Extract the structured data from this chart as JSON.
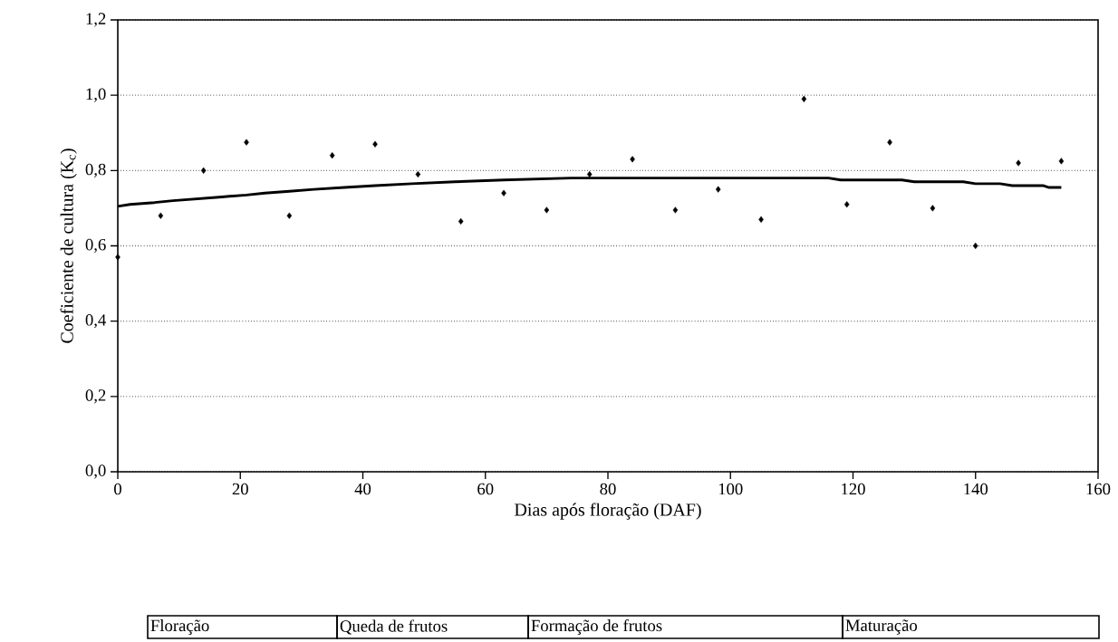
{
  "chart_data": {
    "type": "scatter",
    "xlabel": "Dias após floração (DAF)",
    "ylabel": "Coeficiente de cultura (K$_{c}$)",
    "xlim": [
      0,
      160
    ],
    "ylim": [
      0,
      1.2
    ],
    "xticks": [
      0,
      20,
      40,
      60,
      80,
      100,
      120,
      140,
      160
    ],
    "yticks": [
      {
        "value": 0,
        "label": "0,0"
      },
      {
        "value": 0.2,
        "label": "0,2"
      },
      {
        "value": 0.4,
        "label": "0,4"
      },
      {
        "value": 0.6,
        "label": "0,6"
      },
      {
        "value": 0.8,
        "label": "0,8"
      },
      {
        "value": 1.0,
        "label": "1,0"
      },
      {
        "value": 1.2,
        "label": "1,2"
      }
    ],
    "grid": "y",
    "marker": "diamond",
    "series": [
      {
        "color": "#000000",
        "x": [
          0,
          7,
          14,
          21,
          28,
          35,
          42,
          49,
          56,
          63,
          70,
          77,
          84,
          91,
          98,
          105,
          112,
          119,
          126,
          133,
          140,
          147,
          154
        ],
        "values": [
          0.57,
          0.68,
          0.8,
          0.875,
          0.68,
          0.84,
          0.87,
          0.79,
          0.665,
          0.74,
          0.695,
          0.79,
          0.83,
          0.695,
          0.75,
          0.67,
          0.99,
          0.71,
          0.875,
          0.7,
          0.6,
          0.82,
          0.825
        ]
      },
      {
        "type": "line",
        "color": "#000000",
        "marker": "none",
        "x": [
          0,
          2,
          6,
          9,
          13,
          17,
          21,
          24,
          28,
          32,
          37,
          42,
          48,
          55,
          63,
          74,
          116,
          118,
          128,
          130,
          138,
          140,
          144,
          146,
          151,
          152,
          154
        ],
        "values": [
          0.705,
          0.71,
          0.715,
          0.72,
          0.725,
          0.73,
          0.735,
          0.74,
          0.745,
          0.75,
          0.755,
          0.76,
          0.765,
          0.77,
          0.775,
          0.78,
          0.78,
          0.775,
          0.775,
          0.77,
          0.77,
          0.765,
          0.765,
          0.76,
          0.76,
          0.755,
          0.755
        ]
      }
    ],
    "annotations": [
      "Floração",
      "Queda de frutos",
      "Formação de frutos",
      "Maturação"
    ]
  }
}
